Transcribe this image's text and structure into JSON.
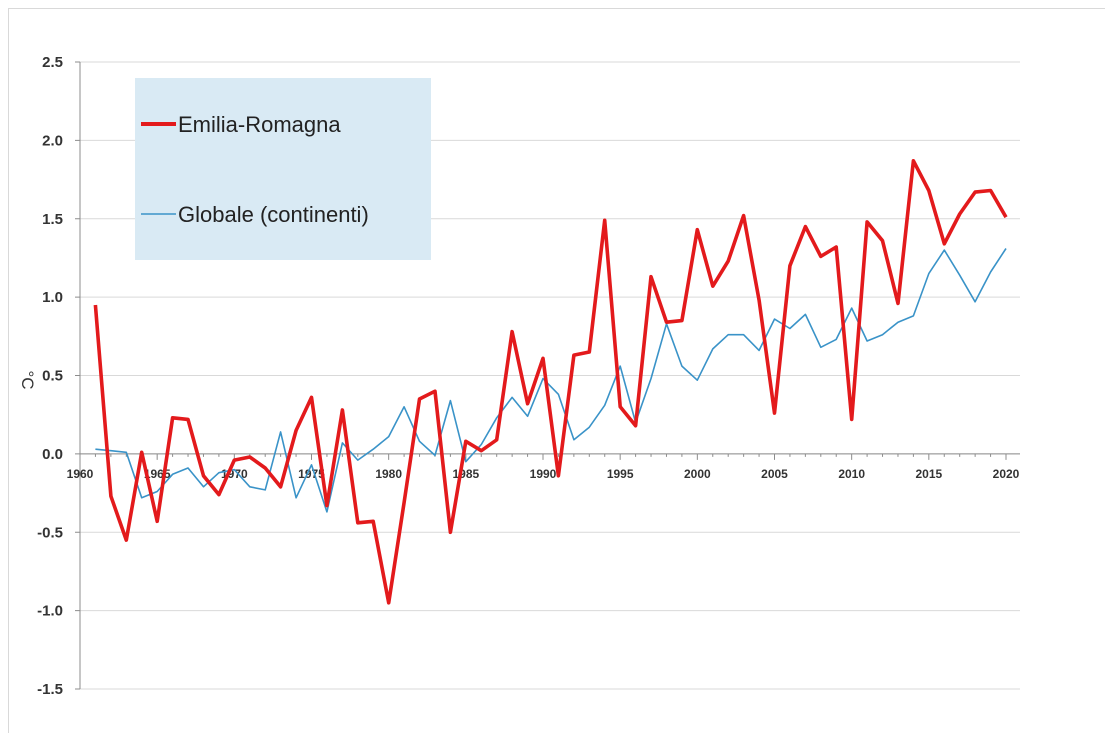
{
  "chart_data": {
    "type": "line",
    "title": "",
    "xlabel": "",
    "ylabel": "°C",
    "ylim": [
      -1.5,
      2.5
    ],
    "xlim": [
      1960,
      2020
    ],
    "grid": "horizontal",
    "legend_position": "top-left",
    "y_ticks": [
      "2.5",
      "2.0",
      "1.5",
      "1.0",
      "0.5",
      "0.0",
      "-0.5",
      "-1.0",
      "-1.5"
    ],
    "y_tick_values": [
      2.5,
      2.0,
      1.5,
      1.0,
      0.5,
      0.0,
      -0.5,
      -1.0,
      -1.5
    ],
    "x_ticks": [
      "1960",
      "1965",
      "1970",
      "1975",
      "1980",
      "1985",
      "1990",
      "1995",
      "2000",
      "2005",
      "2010",
      "2015",
      "2020"
    ],
    "x_tick_values": [
      1960,
      1965,
      1970,
      1975,
      1980,
      1985,
      1990,
      1995,
      2000,
      2005,
      2010,
      2015,
      2020
    ],
    "x": [
      1961,
      1962,
      1963,
      1964,
      1965,
      1966,
      1967,
      1968,
      1969,
      1970,
      1971,
      1972,
      1973,
      1974,
      1975,
      1976,
      1977,
      1978,
      1979,
      1980,
      1981,
      1982,
      1983,
      1984,
      1985,
      1986,
      1987,
      1988,
      1989,
      1990,
      1991,
      1992,
      1993,
      1994,
      1995,
      1996,
      1997,
      1998,
      1999,
      2000,
      2001,
      2002,
      2003,
      2004,
      2005,
      2006,
      2007,
      2008,
      2009,
      2010,
      2011,
      2012,
      2013,
      2014,
      2015,
      2016,
      2017,
      2018,
      2019,
      2020
    ],
    "series": [
      {
        "name": "Emilia-Romagna",
        "color": "#e31a1c",
        "values": [
          0.95,
          -0.27,
          -0.55,
          0.01,
          -0.43,
          0.23,
          0.22,
          -0.14,
          -0.26,
          -0.04,
          -0.02,
          -0.09,
          -0.21,
          0.15,
          0.36,
          -0.33,
          0.28,
          -0.44,
          -0.43,
          -0.95,
          -0.31,
          0.35,
          0.4,
          -0.5,
          0.08,
          0.02,
          0.09,
          0.78,
          0.32,
          0.61,
          -0.14,
          0.63,
          0.65,
          1.49,
          0.3,
          0.18,
          1.13,
          0.84,
          0.85,
          1.43,
          1.07,
          1.23,
          1.52,
          0.98,
          0.26,
          1.2,
          1.45,
          1.26,
          1.32,
          0.22,
          1.48,
          1.36,
          0.96,
          1.87,
          1.68,
          1.34,
          1.53,
          1.67,
          1.68,
          1.51
        ]
      },
      {
        "name": "Globale (continenti)",
        "color": "#3a93c8",
        "values": [
          0.03,
          0.02,
          0.01,
          -0.28,
          -0.24,
          -0.13,
          -0.09,
          -0.21,
          -0.12,
          -0.1,
          -0.21,
          -0.23,
          0.14,
          -0.28,
          -0.07,
          -0.37,
          0.07,
          -0.04,
          0.03,
          0.11,
          0.3,
          0.08,
          -0.01,
          0.34,
          -0.05,
          0.06,
          0.23,
          0.36,
          0.24,
          0.48,
          0.38,
          0.09,
          0.17,
          0.31,
          0.56,
          0.2,
          0.48,
          0.83,
          0.56,
          0.47,
          0.67,
          0.76,
          0.76,
          0.66,
          0.86,
          0.8,
          0.89,
          0.68,
          0.73,
          0.93,
          0.72,
          0.76,
          0.84,
          0.88,
          1.15,
          1.3,
          1.14,
          0.97,
          1.16,
          1.31
        ]
      }
    ]
  }
}
